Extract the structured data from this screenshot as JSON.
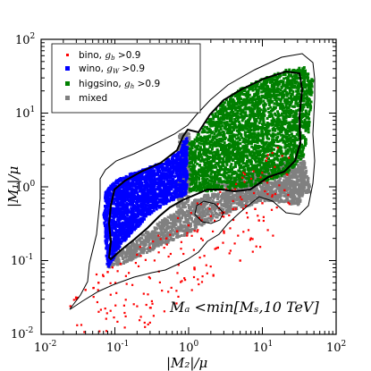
{
  "chart_data": {
    "type": "scatter",
    "xscale": "log",
    "yscale": "log",
    "xlim": [
      0.01,
      100
    ],
    "ylim": [
      0.01,
      100
    ],
    "x_ticks": [
      "10",
      "10",
      "10",
      "10",
      "10"
    ],
    "x_tick_exponents": [
      "-2",
      "-1",
      "0",
      "1",
      "2"
    ],
    "y_ticks": [
      "10",
      "10",
      "10",
      "10",
      "10"
    ],
    "y_tick_exponents": [
      "-2",
      "-1",
      "0",
      "1",
      "2"
    ],
    "xlabel": "|M₂|/μ",
    "ylabel": "|M₁|/μ",
    "annotation": "Mₐ <min[Mₛ,10 TeV]",
    "legend_position": "top-left",
    "grid": false,
    "series": [
      {
        "name": "bino, g_b >0.9",
        "legend_main": "bino, ",
        "legend_sym": "g",
        "legend_sub": "b",
        "legend_tail": " >0.9",
        "color": "#ff0000",
        "marker": "dot",
        "region": "thin band below the diagonal, sparse",
        "points": [
          [
            0.025,
            0.024
          ],
          [
            0.03,
            0.03
          ],
          [
            0.04,
            0.04
          ],
          [
            0.06,
            0.05
          ],
          [
            0.08,
            0.07
          ],
          [
            0.12,
            0.09
          ],
          [
            0.2,
            0.12
          ],
          [
            0.3,
            0.15
          ],
          [
            0.5,
            0.2
          ],
          [
            0.7,
            0.25
          ],
          [
            1.0,
            0.3
          ],
          [
            1.5,
            0.35
          ],
          [
            2.0,
            0.4
          ],
          [
            3.0,
            0.45
          ],
          [
            4.0,
            0.5
          ],
          [
            6.0,
            0.55
          ],
          [
            8.0,
            0.5
          ],
          [
            10.0,
            0.6
          ],
          [
            1.2,
            0.08
          ],
          [
            2.5,
            0.15
          ],
          [
            5.0,
            0.1
          ],
          [
            7.0,
            0.2
          ],
          [
            3.0,
            0.25
          ],
          [
            15.0,
            0.8
          ],
          [
            20.0,
            0.9
          ],
          [
            9.0,
            0.35
          ]
        ]
      },
      {
        "name": "wino, g_W >0.9",
        "legend_main": "wino, ",
        "legend_sym": "g",
        "legend_sub": "W",
        "legend_tail": " >0.9",
        "color": "#0000ff",
        "marker": "square",
        "region": "M2/mu 0.08-0.8, M1/mu 0.1-8, dense",
        "points": [
          [
            0.09,
            0.1
          ],
          [
            0.09,
            0.3
          ],
          [
            0.1,
            1.0
          ],
          [
            0.12,
            2.5
          ],
          [
            0.15,
            3.5
          ],
          [
            0.2,
            4.5
          ],
          [
            0.3,
            5.5
          ],
          [
            0.4,
            6.5
          ],
          [
            0.6,
            7.5
          ],
          [
            0.8,
            3.0
          ],
          [
            0.5,
            2.0
          ],
          [
            0.3,
            1.0
          ],
          [
            0.2,
            0.5
          ],
          [
            0.15,
            0.25
          ],
          [
            0.7,
            0.5
          ],
          [
            0.4,
            0.4
          ],
          [
            0.6,
            1.5
          ]
        ]
      },
      {
        "name": "higgsino, g_h >0.9",
        "legend_main": "higgsino, ",
        "legend_sym": "g",
        "legend_sub": "h",
        "legend_tail": " >0.9",
        "color": "#008000",
        "marker": "square",
        "region": "M2/mu 1-40, M1/mu 1.2-40, dense",
        "points": [
          [
            1.0,
            2.0
          ],
          [
            1.0,
            5.0
          ],
          [
            1.5,
            8.0
          ],
          [
            2.0,
            12.0
          ],
          [
            3.0,
            20.0
          ],
          [
            5.0,
            25.0
          ],
          [
            8.0,
            30.0
          ],
          [
            15.0,
            35.0
          ],
          [
            25.0,
            38.0
          ],
          [
            30.0,
            20.0
          ],
          [
            30.0,
            8.0
          ],
          [
            20.0,
            4.0
          ],
          [
            10.0,
            2.0
          ],
          [
            5.0,
            1.5
          ],
          [
            2.5,
            1.3
          ],
          [
            4.0,
            5.0
          ],
          [
            10.0,
            10.0
          ]
        ]
      },
      {
        "name": "mixed",
        "legend_main": "mixed",
        "legend_sym": "",
        "legend_sub": "",
        "legend_tail": "",
        "color": "#808080",
        "marker": "square",
        "region": "boundary regions between dominant components",
        "points": [
          [
            0.1,
            0.1
          ],
          [
            0.2,
            0.15
          ],
          [
            0.5,
            0.3
          ],
          [
            0.8,
            0.6
          ],
          [
            1.0,
            0.8
          ],
          [
            1.5,
            1.0
          ],
          [
            3.0,
            1.2
          ],
          [
            6.0,
            1.4
          ],
          [
            12.0,
            1.6
          ],
          [
            20.0,
            2.0
          ],
          [
            30.0,
            3.0
          ],
          [
            40.0,
            12.0
          ],
          [
            1.0,
            1.5
          ],
          [
            0.9,
            3.0
          ],
          [
            25.0,
            0.9
          ],
          [
            15.0,
            1.0
          ],
          [
            8.0,
            0.5
          ],
          [
            35.0,
            30.0
          ],
          [
            40.0,
            40.0
          ]
        ]
      }
    ]
  }
}
